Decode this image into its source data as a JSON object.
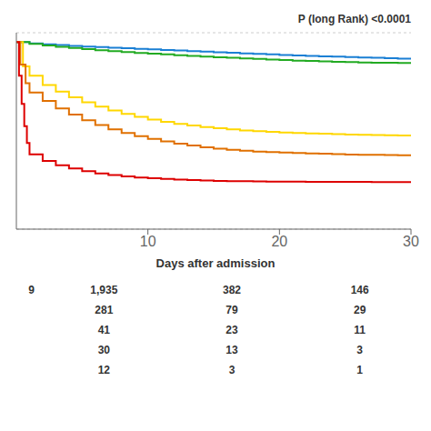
{
  "chart_data": {
    "type": "step",
    "xlabel": "Days after admission",
    "annotations": [
      "P (long Rank) <0.0001"
    ],
    "xlim": [
      0,
      30
    ],
    "xticks": [
      10,
      20,
      30
    ],
    "ylim": [
      0,
      1.05
    ],
    "yticks": [
      0.2,
      0.4,
      0.6,
      0.8,
      1
    ],
    "grid": true,
    "tick_labels": "x",
    "series": [
      {
        "color": "#1a7fd4",
        "x": [
          0,
          1,
          2,
          3,
          4,
          5,
          6,
          7,
          8,
          9,
          10,
          11,
          12,
          13,
          14,
          15,
          16,
          17,
          18,
          19,
          20,
          21,
          22,
          23,
          24,
          25,
          26,
          27,
          28,
          29,
          30
        ],
        "values": [
          1.0,
          0.993,
          0.988,
          0.984,
          0.98,
          0.976,
          0.973,
          0.97,
          0.967,
          0.964,
          0.961,
          0.958,
          0.955,
          0.952,
          0.949,
          0.946,
          0.943,
          0.94,
          0.937,
          0.934,
          0.931,
          0.928,
          0.926,
          0.924,
          0.922,
          0.92,
          0.918,
          0.916,
          0.914,
          0.912,
          0.91
        ]
      },
      {
        "color": "#22aa22",
        "x": [
          0,
          1,
          2,
          3,
          4,
          5,
          6,
          7,
          8,
          9,
          10,
          11,
          12,
          13,
          14,
          15,
          16,
          17,
          18,
          19,
          20,
          21,
          22,
          23,
          24,
          25,
          26,
          27,
          28,
          29,
          30
        ],
        "values": [
          1.0,
          0.99,
          0.982,
          0.975,
          0.969,
          0.963,
          0.957,
          0.952,
          0.947,
          0.942,
          0.938,
          0.934,
          0.93,
          0.926,
          0.922,
          0.919,
          0.916,
          0.913,
          0.91,
          0.907,
          0.904,
          0.901,
          0.899,
          0.897,
          0.895,
          0.893,
          0.891,
          0.89,
          0.889,
          0.888,
          0.887
        ]
      },
      {
        "color": "#ffd700",
        "x": [
          0,
          0.5,
          1,
          2,
          3,
          4,
          5,
          6,
          7,
          8,
          9,
          10,
          11,
          12,
          13,
          14,
          15,
          16,
          17,
          18,
          19,
          20,
          21,
          22,
          23,
          24,
          25,
          26,
          27,
          28,
          29,
          30
        ],
        "values": [
          1.0,
          0.87,
          0.82,
          0.77,
          0.735,
          0.705,
          0.678,
          0.655,
          0.634,
          0.616,
          0.6,
          0.586,
          0.574,
          0.563,
          0.554,
          0.546,
          0.539,
          0.533,
          0.528,
          0.524,
          0.52,
          0.517,
          0.514,
          0.512,
          0.51,
          0.508,
          0.506,
          0.504,
          0.503,
          0.502,
          0.501,
          0.5
        ]
      },
      {
        "color": "#e07000",
        "x": [
          0,
          0.3,
          0.7,
          1,
          2,
          3,
          4,
          5,
          6,
          7,
          8,
          9,
          10,
          11,
          12,
          13,
          14,
          15,
          16,
          17,
          18,
          19,
          20,
          21,
          22,
          23,
          24,
          25,
          26,
          27,
          28,
          29,
          30
        ],
        "values": [
          1.0,
          0.88,
          0.78,
          0.73,
          0.685,
          0.645,
          0.612,
          0.582,
          0.557,
          0.534,
          0.514,
          0.497,
          0.482,
          0.469,
          0.457,
          0.447,
          0.438,
          0.43,
          0.424,
          0.419,
          0.415,
          0.412,
          0.409,
          0.407,
          0.405,
          0.403,
          0.401,
          0.399,
          0.398,
          0.397,
          0.396,
          0.395,
          0.394
        ]
      },
      {
        "color": "#dd0000",
        "x": [
          0,
          0.2,
          0.4,
          0.6,
          0.8,
          1,
          2,
          3,
          4,
          5,
          6,
          7,
          8,
          9,
          10,
          11,
          12,
          13,
          14,
          15,
          16,
          17,
          18,
          19,
          20,
          21,
          22,
          23,
          24,
          25,
          26,
          27,
          28,
          29,
          30
        ],
        "values": [
          1.0,
          0.82,
          0.67,
          0.55,
          0.46,
          0.4,
          0.365,
          0.342,
          0.324,
          0.31,
          0.298,
          0.289,
          0.282,
          0.276,
          0.272,
          0.268,
          0.265,
          0.262,
          0.26,
          0.258,
          0.257,
          0.256,
          0.255,
          0.254,
          0.254,
          0.254,
          0.253,
          0.253,
          0.253,
          0.253,
          0.253,
          0.252,
          0.252,
          0.252,
          0.252
        ]
      }
    ],
    "table": {
      "rows": [
        {
          "label": "9",
          "values": [
            {
              "value": 1935,
              "label": "1,935"
            },
            382,
            146
          ]
        },
        {
          "label": null,
          "values": [
            281,
            79,
            29
          ]
        },
        {
          "label": null,
          "values": [
            41,
            23,
            11
          ]
        },
        {
          "label": null,
          "values": [
            30,
            13,
            3
          ]
        },
        {
          "label": null,
          "values": [
            12,
            3,
            1
          ]
        }
      ]
    }
  }
}
